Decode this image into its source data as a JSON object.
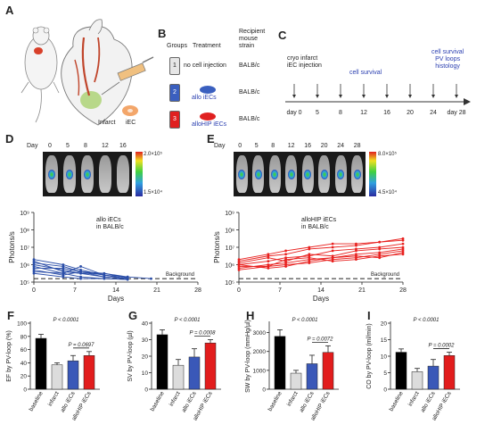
{
  "panels": {
    "A": {
      "label": "A",
      "infarct_label": "Infarct",
      "iec_label": "iEC"
    },
    "B": {
      "label": "B",
      "headers": {
        "groups": "Groups",
        "treatment": "Treatment",
        "strain": "Recipient\nmouse\nstrain"
      },
      "rows": [
        {
          "group": "1",
          "treatment": "no cell injection",
          "strain": "BALB/c",
          "color": "#e6e6e6"
        },
        {
          "group": "2",
          "treatment": "allo iECs",
          "strain": "BALB/c",
          "color": "#3a5fbf"
        },
        {
          "group": "3",
          "treatment": "alloHIP iECs",
          "strain": "BALB/c",
          "color": "#e02020"
        }
      ]
    },
    "C": {
      "label": "C",
      "event_start": "cryo infarct\niEC injection",
      "event_mid": "cell survival",
      "event_end": "cell survival\nPV loops\nhistology",
      "days": [
        "day 0",
        "5",
        "8",
        "12",
        "16",
        "20",
        "24",
        "day 28"
      ]
    },
    "D": {
      "label": "D",
      "day_label": "Day",
      "days": [
        "0",
        "5",
        "8",
        "12",
        "16"
      ],
      "scale_max": "2.0×10⁵",
      "scale_min": "1.5×10⁴"
    },
    "E": {
      "label": "E",
      "day_label": "Day",
      "days": [
        "0",
        "5",
        "8",
        "12",
        "16",
        "20",
        "24",
        "28"
      ],
      "scale_max": "8.0×10⁵",
      "scale_min": "4.5×10⁴"
    }
  },
  "charts": {
    "left_line": {
      "title": "allo iECs\nin BALB/c",
      "ylabel": "Photons/s",
      "xlabel": "Days",
      "ticks_x": [
        "0",
        "7",
        "14",
        "21",
        "28"
      ],
      "ticks_y": [
        "10⁵",
        "10⁶",
        "10⁷",
        "10⁸",
        "10⁹"
      ],
      "background_label": "Background",
      "color": "#2b4ea8"
    },
    "right_line": {
      "title": "alloHIP iECs\nin BALB/c",
      "ylabel": "Photons/s",
      "xlabel": "Days",
      "ticks_x": [
        "0",
        "7",
        "14",
        "21",
        "28"
      ],
      "ticks_y": [
        "10⁵",
        "10⁶",
        "10⁷",
        "10⁸",
        "10⁹"
      ],
      "background_label": "Background",
      "color": "#e8201e"
    },
    "bars": [
      {
        "label": "F",
        "ylabel": "EF by PV-loop (%)",
        "p_main": "P < 0.0001",
        "p_pair": "P = 0.0697",
        "ticks": [
          "0",
          "20",
          "40",
          "60",
          "80",
          "100"
        ],
        "ymax": 100,
        "categories": [
          "baseline",
          "infarct",
          "allo iECs",
          "alloHIP iECs"
        ],
        "values": [
          77,
          37,
          43,
          51
        ],
        "errors": [
          6,
          3,
          8,
          6
        ]
      },
      {
        "label": "G",
        "ylabel": "SV by PV-loop (µl)",
        "p_main": "P < 0.0001",
        "p_pair": "P = 0.0008",
        "ticks": [
          "0",
          "10",
          "20",
          "30",
          "40"
        ],
        "ymax": 40,
        "categories": [
          "baseline",
          "infarct",
          "allo iECs",
          "alloHIP iECs"
        ],
        "values": [
          33,
          14.5,
          19.5,
          28
        ],
        "errors": [
          3,
          3.5,
          5,
          2
        ]
      },
      {
        "label": "H",
        "ylabel": "SW by PV-loop (mmHg/µl)",
        "p_main": "P < 0.0001",
        "p_pair": "P = 0.0072",
        "ticks": [
          "0",
          "1000",
          "2000",
          "3000"
        ],
        "ymax": 3500,
        "categories": [
          "baseline",
          "infarct",
          "allo iECs",
          "alloHIP iECs"
        ],
        "values": [
          2800,
          850,
          1350,
          1950
        ],
        "errors": [
          350,
          150,
          450,
          350
        ]
      },
      {
        "label": "I",
        "ylabel": "CO by PV-loop (ml/min)",
        "p_main": "P < 0.0001",
        "p_pair": "P = 0.0002",
        "ticks": [
          "0",
          "5",
          "10",
          "15",
          "20"
        ],
        "ymax": 20,
        "categories": [
          "baseline",
          "infarct",
          "allo iECs",
          "alloHIP iECs"
        ],
        "values": [
          11.2,
          5.3,
          7,
          10.2
        ],
        "errors": [
          1,
          1,
          2,
          1
        ]
      }
    ],
    "bar_colors": [
      "#000000",
      "#dcdcdc",
      "#3a58b8",
      "#e21d1d"
    ]
  },
  "chart_data": [
    {
      "type": "line",
      "title": "allo iECs in BALB/c",
      "xlabel": "Days",
      "ylabel": "Photons/s",
      "xlim": [
        0,
        28
      ],
      "ylim_log10": [
        5,
        9
      ],
      "x": [
        0,
        5,
        8,
        12,
        16,
        20
      ],
      "series": [
        {
          "values": [
            6.2,
            5.6,
            5.5,
            5.3,
            5.2,
            null
          ]
        },
        {
          "values": [
            6.0,
            5.7,
            5.5,
            5.5,
            5.3,
            5.2
          ]
        },
        {
          "values": [
            5.8,
            5.8,
            5.6,
            5.3,
            5.2,
            null
          ]
        },
        {
          "values": [
            5.9,
            5.5,
            5.3,
            5.2,
            5.15,
            null
          ]
        },
        {
          "values": [
            5.7,
            5.4,
            5.6,
            5.5,
            5.25,
            null
          ]
        },
        {
          "values": [
            6.1,
            5.9,
            5.6,
            5.4,
            5.2,
            null
          ]
        },
        {
          "values": [
            5.6,
            5.5,
            5.9,
            5.4,
            5.3,
            null
          ]
        },
        {
          "values": [
            6.3,
            6.0,
            5.7,
            5.4,
            5.2,
            null
          ]
        },
        {
          "values": [
            5.5,
            5.3,
            5.2,
            5.2,
            5.15,
            null
          ]
        }
      ],
      "background_log10": 5.2
    },
    {
      "type": "line",
      "title": "alloHIP iECs in BALB/c",
      "xlabel": "Days",
      "ylabel": "Photons/s",
      "xlim": [
        0,
        28
      ],
      "ylim_log10": [
        5,
        9
      ],
      "x": [
        0,
        5,
        8,
        12,
        16,
        20,
        24,
        28
      ],
      "series": [
        {
          "values": [
            6.2,
            6.5,
            6.6,
            6.9,
            7.0,
            7.1,
            7.3,
            7.4
          ]
        },
        {
          "values": [
            6.0,
            6.2,
            6.4,
            6.5,
            6.8,
            6.9,
            7.0,
            7.2
          ]
        },
        {
          "values": [
            5.8,
            6.0,
            6.1,
            6.3,
            6.4,
            6.6,
            6.7,
            6.9
          ]
        },
        {
          "values": [
            6.1,
            6.4,
            6.2,
            6.6,
            6.5,
            6.8,
            6.9,
            7.0
          ]
        },
        {
          "values": [
            5.9,
            5.9,
            6.0,
            6.1,
            6.3,
            6.4,
            6.6,
            6.8
          ]
        },
        {
          "values": [
            6.0,
            5.8,
            5.9,
            6.2,
            6.4,
            6.5,
            6.4,
            6.7
          ]
        },
        {
          "values": [
            5.7,
            5.9,
            6.3,
            6.4,
            6.2,
            6.3,
            6.5,
            6.6
          ]
        },
        {
          "values": [
            6.3,
            6.6,
            6.8,
            7.0,
            7.2,
            7.2,
            7.3,
            7.5
          ]
        }
      ],
      "background_log10": 5.2
    }
  ]
}
